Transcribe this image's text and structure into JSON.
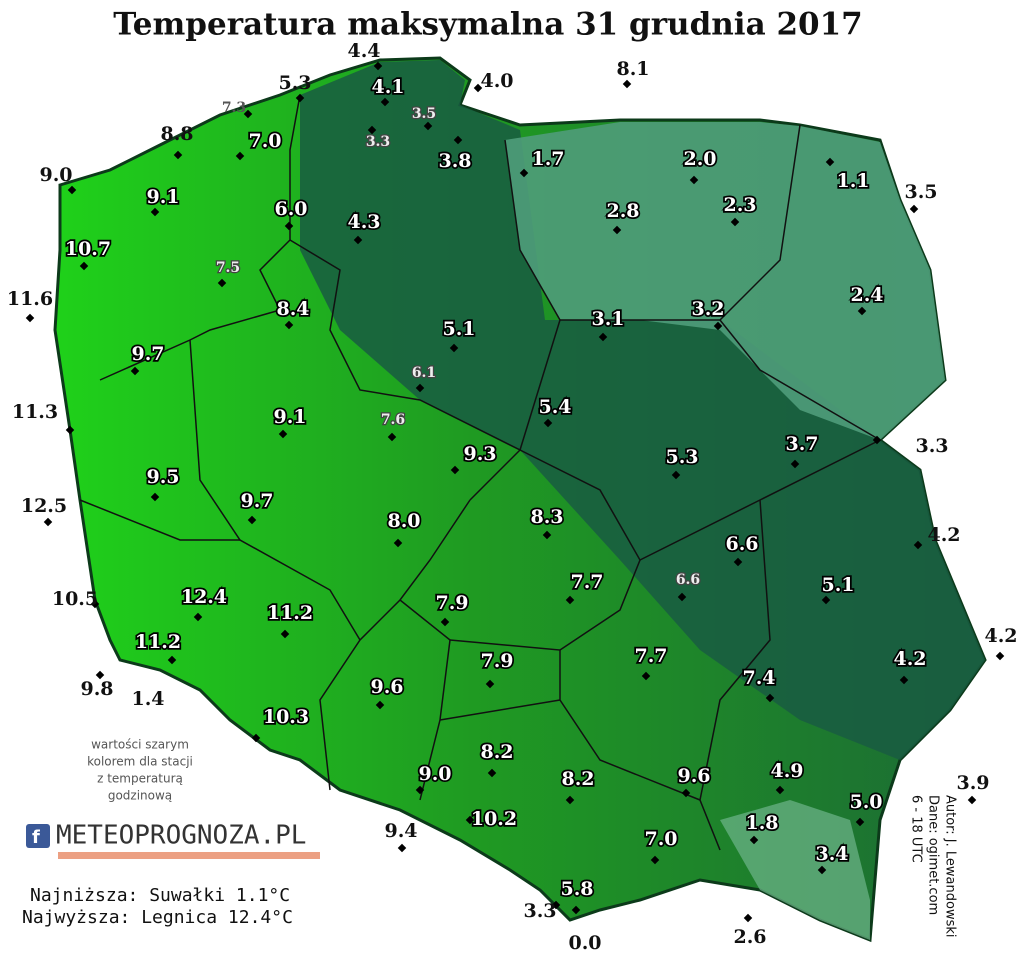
{
  "title": "Temperatura maksymalna 31 grudnia 2017",
  "stations": [
    "4.4",
    "5.3",
    "4.1",
    "4.0",
    "8.1",
    "7.3",
    "3.5",
    "7.0",
    "8.8",
    "3.3",
    "3.8",
    "1.7",
    "2.0",
    "1.1",
    "9.0",
    "9.1",
    "6.0",
    "2.8",
    "2.3",
    "3.5",
    "4.3",
    "10.7",
    "7.5",
    "11.6",
    "2.4",
    "8.4",
    "3.1",
    "3.2",
    "5.1",
    "9.7",
    "6.1",
    "11.3",
    "5.4",
    "7.6",
    "9.1",
    "3.3",
    "9.3",
    "5.3",
    "3.7",
    "9.5",
    "12.5",
    "9.7",
    "8.0",
    "8.3",
    "4.2",
    "6.6",
    "10.5",
    "12.4",
    "11.2",
    "7.7",
    "5.1",
    "6.6",
    "7.9",
    "11.2",
    "4.2",
    "7.9",
    "7.7",
    "4.2",
    "9.8",
    "1.4",
    "9.6",
    "7.4",
    "10.3",
    "8.2",
    "9.0",
    "8.2",
    "9.6",
    "4.9",
    "3.9",
    "5.0",
    "9.4",
    "10.2",
    "1.8",
    "7.0",
    "3.4",
    "5.8",
    "3.3",
    "2.6",
    "0.0"
  ],
  "note": [
    "wartości szarym",
    "kolorem dla stacji",
    "z temperaturą",
    "godzinową"
  ],
  "logo": "METEOPROGNOZA.PL",
  "lowest": "Najniższa: Suwałki 1.1°C",
  "highest": "Najwyższa: Legnica 12.4°C",
  "credits": [
    "Autor: J. Lewandowski",
    "Dane: ogimet.com",
    "6 - 18 UTC"
  ]
}
